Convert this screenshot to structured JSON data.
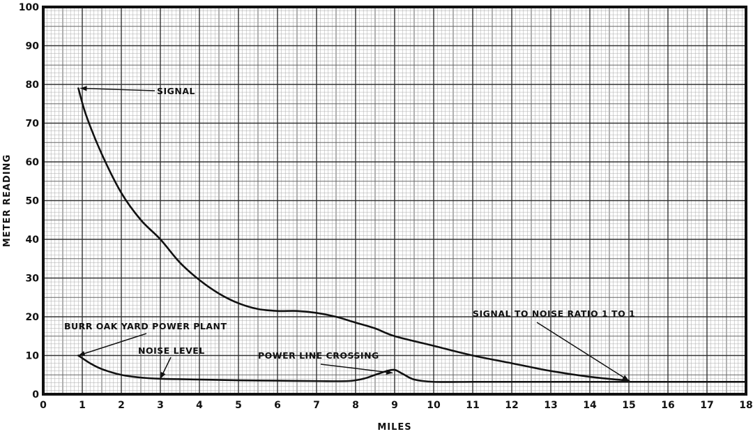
{
  "chart_data": {
    "type": "line",
    "xlabel": "MILES",
    "ylabel": "METER READING",
    "xlim": [
      0,
      18
    ],
    "ylim": [
      0,
      100
    ],
    "xticks": [
      "0",
      "1",
      "2",
      "3",
      "4",
      "5",
      "6",
      "7",
      "8",
      "9",
      "10",
      "11",
      "12",
      "13",
      "14",
      "15",
      "16",
      "17",
      "18"
    ],
    "yticks": [
      "0",
      "10",
      "20",
      "30",
      "40",
      "50",
      "60",
      "70",
      "80",
      "90",
      "100"
    ],
    "grid": true,
    "series": [
      {
        "key": "signal",
        "x": [
          0.9,
          1.1,
          1.5,
          2.0,
          2.5,
          3.0,
          3.5,
          4.0,
          4.5,
          5.0,
          5.5,
          6.0,
          6.5,
          7.0,
          7.5,
          8.0,
          8.5,
          9.0,
          10.0,
          11.0,
          12.0,
          13.0,
          14.0,
          15.0
        ],
        "y": [
          79,
          72,
          62,
          52,
          45,
          40,
          34,
          29.5,
          26,
          23.5,
          22,
          21.5,
          21.5,
          21,
          20,
          18.5,
          17,
          15,
          12.5,
          10,
          8,
          6,
          4.5,
          3.5
        ]
      },
      {
        "key": "noise",
        "x": [
          0.9,
          1.2,
          1.5,
          2.0,
          2.5,
          3.0,
          4.0,
          5.0,
          6.0,
          7.0,
          7.8,
          8.2,
          8.5,
          8.8,
          9.0,
          9.2,
          9.5,
          10.0,
          11.0,
          12.0,
          14.0,
          16.0,
          18.0
        ],
        "y": [
          10,
          8,
          6.5,
          5,
          4.3,
          4,
          3.8,
          3.6,
          3.5,
          3.4,
          3.4,
          4.0,
          5.0,
          6.0,
          6.3,
          5.3,
          3.8,
          3.2,
          3.2,
          3.2,
          3.2,
          3.2,
          3.2
        ]
      }
    ],
    "annotations": [
      {
        "key": "signal",
        "text": "SIGNAL",
        "target": [
          0.95,
          79
        ]
      },
      {
        "key": "burr_oak",
        "text": "BURR OAK YARD POWER PLANT",
        "target": [
          0.9,
          10
        ]
      },
      {
        "key": "noise_level",
        "text": "NOISE LEVEL",
        "target": [
          3.0,
          4
        ]
      },
      {
        "key": "power_line",
        "text": "POWER LINE CROSSING",
        "target": [
          8.95,
          5.5
        ]
      },
      {
        "key": "snr",
        "text": "SIGNAL TO NOISE RATIO 1 TO 1",
        "target": [
          15.0,
          3.5
        ]
      }
    ]
  }
}
